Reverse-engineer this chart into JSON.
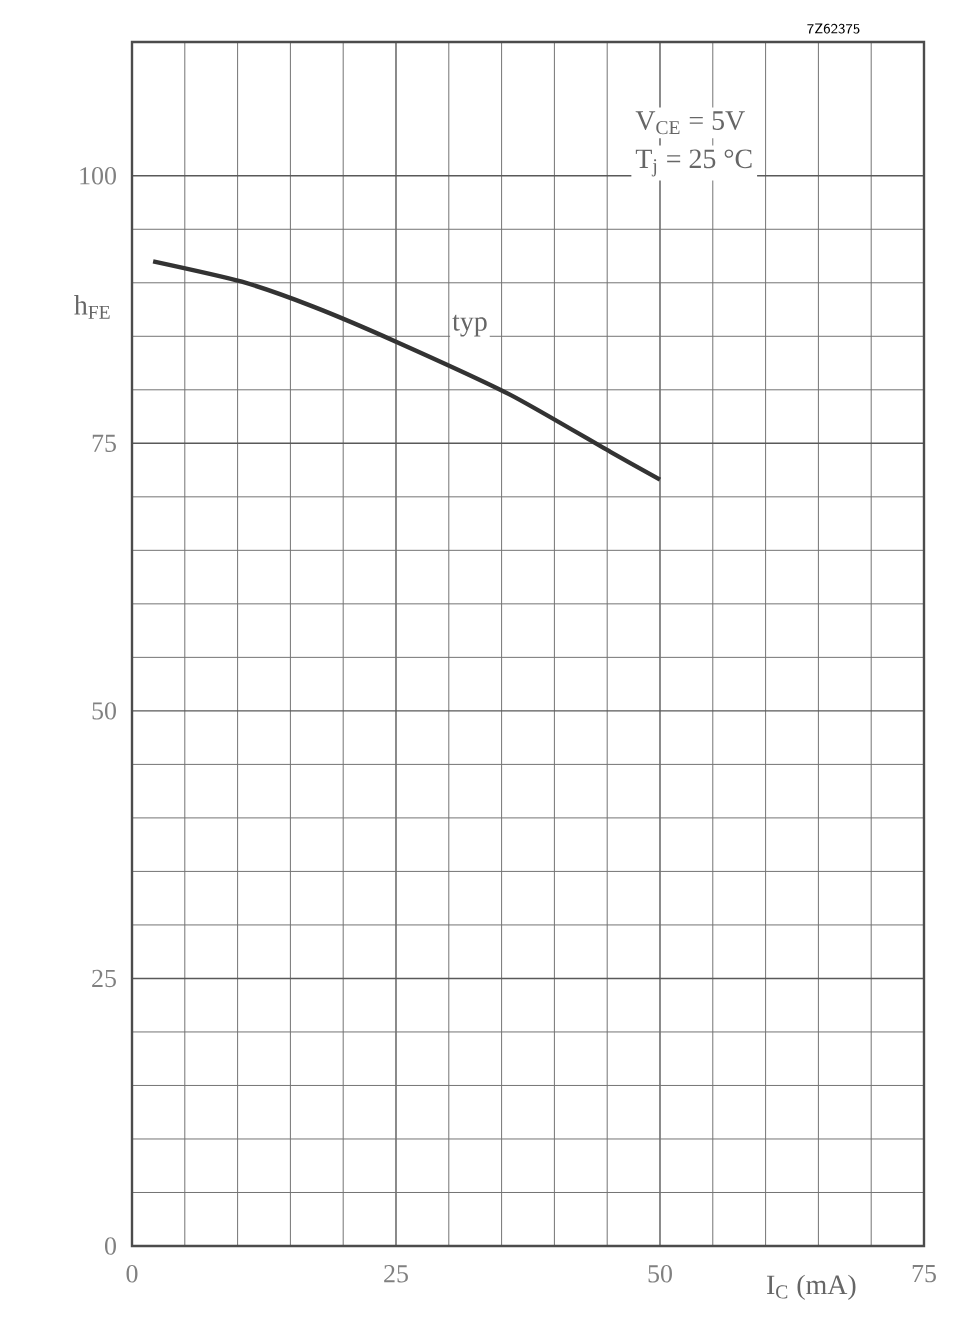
{
  "chart_data": {
    "type": "line",
    "xlabel": "I$_{C}$ (mA)",
    "ylabel": "h$_{FE}$",
    "x": [
      2,
      10.4,
      17.1,
      25,
      35.7,
      45.3,
      50
    ],
    "series": [
      {
        "color": "#333333",
        "values": [
          92,
          90.1,
          87.8,
          84.5,
          79.6,
          74.2,
          71.6
        ]
      }
    ],
    "xlim": [
      0,
      75
    ],
    "ylim": [
      0,
      112.5
    ],
    "xticks": [
      0,
      25,
      50,
      75
    ],
    "yticks": [
      0,
      25,
      50,
      75,
      100
    ],
    "grid": true,
    "line_style": "solid",
    "annotations": [
      "7Z62375",
      "V$_{CE}$ = 5V",
      "T$_{j}$ = 25 °C",
      {
        "text": "typ",
        "x": 32,
        "y": 86
      }
    ]
  }
}
